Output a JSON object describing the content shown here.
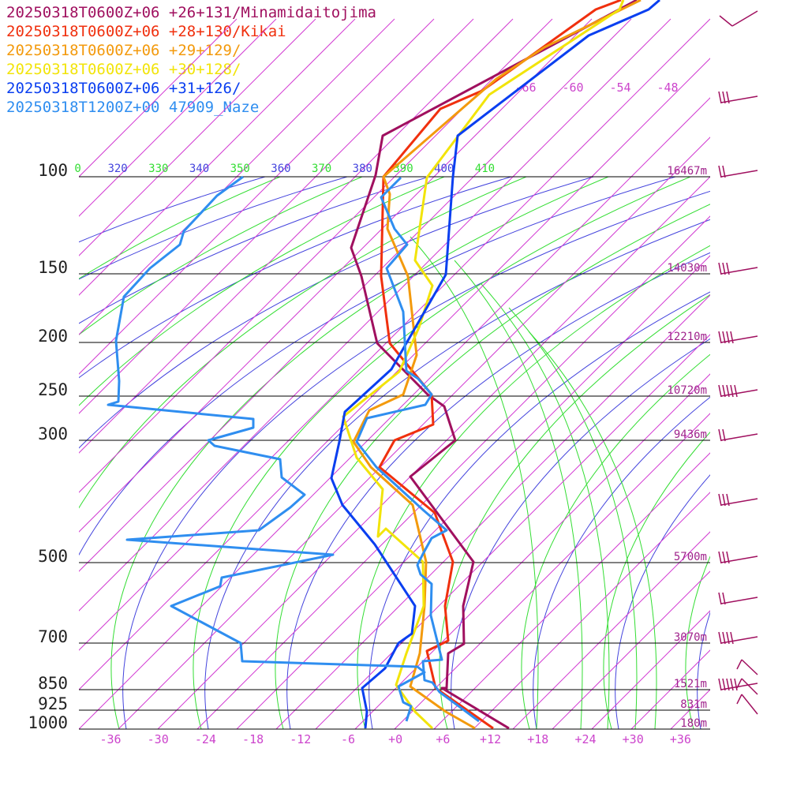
{
  "chart_data": {
    "type": "skew-T log-P sounding",
    "legend": [
      {
        "label": "20250318T0600Z+06 +26+131/Minamidaitojima",
        "color": "#a0105f"
      },
      {
        "label": "20250318T0600Z+06 +28+130/Kikai",
        "color": "#f0300e"
      },
      {
        "label": "20250318T0600Z+06 +29+129/",
        "color": "#f39a0d"
      },
      {
        "label": "20250318T0600Z+06 +30+128/",
        "color": "#f2e40a"
      },
      {
        "label": "20250318T0600Z+06 +31+126/",
        "color": "#0a3ff0"
      },
      {
        "label": "20250318T1200Z+00 47909_Naze",
        "color": "#2f8ef0"
      }
    ],
    "pressure_levels": [
      {
        "p": 100,
        "label": "100",
        "height": "16467m"
      },
      {
        "p": 150,
        "label": "150",
        "height": "14030m"
      },
      {
        "p": 200,
        "label": "200",
        "height": "12210m"
      },
      {
        "p": 250,
        "label": "250",
        "height": "10720m"
      },
      {
        "p": 300,
        "label": "300",
        "height": "9436m"
      },
      {
        "p": 500,
        "label": "500",
        "height": "5700m"
      },
      {
        "p": 700,
        "label": "700",
        "height": "3070m"
      },
      {
        "p": 850,
        "label": "850",
        "height": "1521m"
      },
      {
        "p": 925,
        "label": "925",
        "height": "831m"
      },
      {
        "p": 1000,
        "label": "1000",
        "height": "180m"
      }
    ],
    "x_ticks": [
      "-36",
      "-30",
      "-24",
      "-18",
      "-12",
      "-6",
      "+0",
      "+6",
      "+12",
      "+18",
      "+24",
      "+30",
      "+36"
    ],
    "upper_isotherm_labels": [
      "-66",
      "-60",
      "-54",
      "-48"
    ],
    "theta_labels": [
      {
        "value": "0",
        "color": "#33dd33"
      },
      {
        "value": "320",
        "color": "#4444dd"
      },
      {
        "value": "330",
        "color": "#33dd33"
      },
      {
        "value": "340",
        "color": "#4444dd"
      },
      {
        "value": "350",
        "color": "#33dd33"
      },
      {
        "value": "360",
        "color": "#4444dd"
      },
      {
        "value": "370",
        "color": "#33dd33"
      },
      {
        "value": "380",
        "color": "#4444dd"
      },
      {
        "value": "390",
        "color": "#33dd33"
      },
      {
        "value": "400",
        "color": "#4444dd"
      },
      {
        "value": "410",
        "color": "#33dd33"
      }
    ],
    "series": [
      {
        "color": "#a0105f",
        "points": [
          [
            645,
            923
          ],
          [
            560,
            872
          ],
          [
            566,
            872
          ],
          [
            568,
            828
          ],
          [
            588,
            816
          ],
          [
            587,
            768
          ],
          [
            600,
            712
          ],
          [
            520,
            604
          ],
          [
            577,
            558
          ],
          [
            563,
            515
          ],
          [
            542,
            500
          ],
          [
            478,
            435
          ],
          [
            458,
            350
          ],
          [
            445,
            314
          ],
          [
            476,
            222
          ],
          [
            485,
            172
          ],
          [
            807,
            0
          ]
        ]
      },
      {
        "color": "#f0300e",
        "points": [
          [
            625,
            923
          ],
          [
            552,
            872
          ],
          [
            541,
            825
          ],
          [
            568,
            812
          ],
          [
            564,
            768
          ],
          [
            574,
            712
          ],
          [
            551,
            650
          ],
          [
            481,
            592
          ],
          [
            500,
            558
          ],
          [
            549,
            538
          ],
          [
            547,
            500
          ],
          [
            494,
            435
          ],
          [
            483,
            350
          ],
          [
            486,
            224
          ],
          [
            558,
            138
          ],
          [
            611,
            115
          ],
          [
            755,
            12
          ],
          [
            787,
            0
          ]
        ]
      },
      {
        "color": "#f39a0d",
        "points": [
          [
            602,
            923
          ],
          [
            565,
            902
          ],
          [
            520,
            870
          ],
          [
            532,
            828
          ],
          [
            538,
            768
          ],
          [
            540,
            712
          ],
          [
            523,
            640
          ],
          [
            470,
            592
          ],
          [
            448,
            560
          ],
          [
            468,
            520
          ],
          [
            511,
            500
          ],
          [
            528,
            450
          ],
          [
            517,
            350
          ],
          [
            491,
            290
          ],
          [
            494,
            246
          ],
          [
            486,
            224
          ],
          [
            629,
            100
          ],
          [
            690,
            60
          ],
          [
            812,
            0
          ]
        ]
      },
      {
        "color": "#f2e40a",
        "points": [
          [
            548,
            923
          ],
          [
            526,
            902
          ],
          [
            502,
            868
          ],
          [
            515,
            828
          ],
          [
            537,
            768
          ],
          [
            536,
            712
          ],
          [
            489,
            670
          ],
          [
            479,
            680
          ],
          [
            485,
            620
          ],
          [
            452,
            580
          ],
          [
            435,
            528
          ],
          [
            506,
            471
          ],
          [
            531,
            415
          ],
          [
            548,
            362
          ],
          [
            526,
            330
          ],
          [
            541,
            225
          ],
          [
            620,
            120
          ],
          [
            785,
            12
          ],
          [
            790,
            0
          ]
        ]
      },
      {
        "color": "#0a3ff0",
        "points": [
          [
            463,
            923
          ],
          [
            465,
            902
          ],
          [
            459,
            872
          ],
          [
            488,
            847
          ],
          [
            505,
            815
          ],
          [
            522,
            803
          ],
          [
            526,
            768
          ],
          [
            475,
            690
          ],
          [
            434,
            640
          ],
          [
            420,
            606
          ],
          [
            430,
            560
          ],
          [
            437,
            522
          ],
          [
            496,
            468
          ],
          [
            565,
            348
          ],
          [
            574,
            224
          ],
          [
            580,
            172
          ],
          [
            746,
            45
          ],
          [
            822,
            12
          ],
          [
            836,
            0
          ]
        ]
      },
      {
        "color": "#2f8ef0",
        "points": [
          [
            607,
            914
          ],
          [
            557,
            877
          ],
          [
            548,
            865
          ],
          [
            538,
            862
          ],
          [
            536,
            838
          ],
          [
            560,
            836
          ],
          [
            546,
            780
          ],
          [
            547,
            740
          ],
          [
            533,
            728
          ],
          [
            529,
            716
          ],
          [
            536,
            702
          ],
          [
            547,
            682
          ],
          [
            566,
            672
          ],
          [
            537,
            647
          ],
          [
            477,
            592
          ],
          [
            452,
            560
          ],
          [
            465,
            530
          ],
          [
            539,
            513
          ],
          [
            547,
            500
          ],
          [
            530,
            480
          ],
          [
            515,
            470
          ],
          [
            511,
            395
          ],
          [
            490,
            340
          ],
          [
            516,
            310
          ],
          [
            500,
            290
          ],
          [
            483,
            250
          ],
          [
            508,
            225
          ]
        ]
      },
      {
        "color": "#2f8ef0",
        "points": [
          [
            515,
            914
          ],
          [
            521,
            895
          ],
          [
            511,
            890
          ],
          [
            505,
            870
          ],
          [
            538,
            852
          ],
          [
            529,
            845
          ],
          [
            307,
            838
          ],
          [
            305,
            815
          ],
          [
            217,
            768
          ],
          [
            279,
            743
          ],
          [
            281,
            732
          ],
          [
            422,
            703
          ],
          [
            161,
            684
          ],
          [
            328,
            672
          ],
          [
            368,
            643
          ],
          [
            386,
            627
          ],
          [
            357,
            605
          ],
          [
            355,
            582
          ],
          [
            272,
            565
          ],
          [
            264,
            558
          ],
          [
            321,
            542
          ],
          [
            321,
            531
          ],
          [
            137,
            513
          ],
          [
            150,
            509
          ],
          [
            151,
            483
          ],
          [
            147,
            432
          ],
          [
            157,
            376
          ],
          [
            190,
            340
          ],
          [
            228,
            310
          ],
          [
            233,
            293
          ],
          [
            275,
            248
          ],
          [
            308,
            224
          ]
        ]
      }
    ],
    "wind_barbs": [
      {
        "p": "100"
      },
      {
        "p": "150"
      },
      {
        "p": "200"
      },
      {
        "p": "250"
      },
      {
        "p": "300"
      },
      {
        "p": "500"
      },
      {
        "p": "700"
      },
      {
        "p": "850"
      }
    ]
  }
}
